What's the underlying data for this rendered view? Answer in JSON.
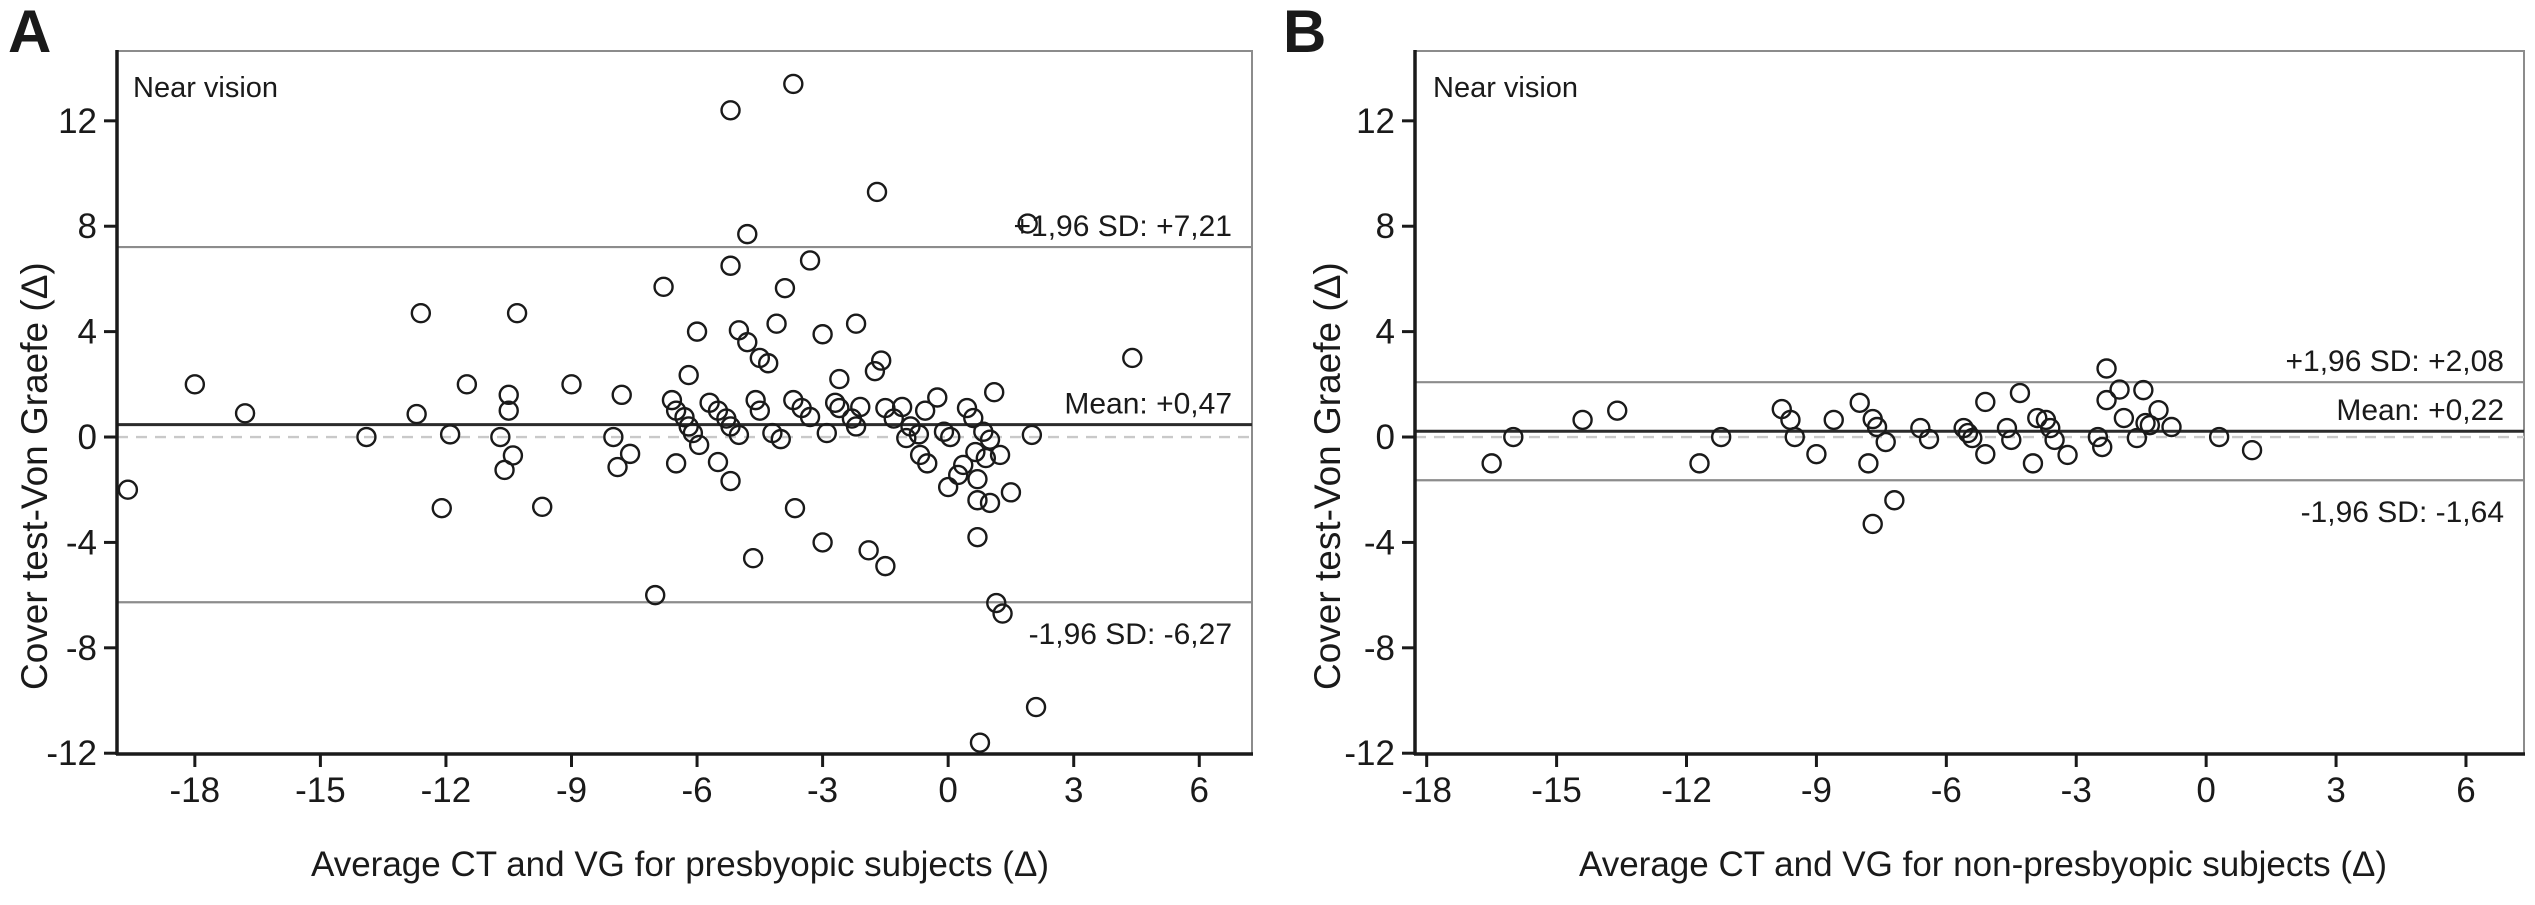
{
  "page": {
    "background": "#ffffff"
  },
  "colors": {
    "marker": "#1a1a1a",
    "box_border": "#8c8c8c",
    "axis_dark": "#1a1a1a",
    "sd_line": "#8c8c8c",
    "mean_line": "#2b2b2b",
    "zero_dashed": "#c9c9c9",
    "text": "#1a1a1a"
  },
  "panels": [
    {
      "letter": "A",
      "annotation": "Near vision",
      "y_axis_title": "Cover test-Von Graefe (Δ)",
      "x_axis_title": "Average CT and VG for presbyopic subjects (Δ)"
    },
    {
      "letter": "B",
      "annotation": "Near vision",
      "y_axis_title": "Cover test-Von Graefe (Δ)",
      "x_axis_title": "Average CT and VG for non-presbyopic subjects (Δ)"
    }
  ],
  "chart_data": [
    {
      "type": "scatter",
      "panel": "A",
      "title": "Near vision",
      "xlabel": "Average CT and VG for presbyopic subjects (Δ)",
      "ylabel": "Cover test-Von Graefe (Δ)",
      "xlim": [
        -19.86,
        7.26
      ],
      "ylim": [
        -12.03,
        14.65
      ],
      "xticks": [
        -18,
        -15,
        -12,
        -9,
        -6,
        -3,
        0,
        3,
        6
      ],
      "yticks": [
        -12,
        -8,
        -4,
        0,
        4,
        8,
        12
      ],
      "grid": false,
      "legend": "none",
      "marker": "open-circle",
      "reference_lines": [
        {
          "value": 7.21,
          "label": "+1,96 SD: +7,21",
          "style": "solid-gray",
          "label_position": "above-right"
        },
        {
          "value": 0.47,
          "label": "Mean: +0,47",
          "style": "solid-dark",
          "label_position": "above-right"
        },
        {
          "value": 0.0,
          "label": "",
          "style": "dashed-light",
          "label_position": "none"
        },
        {
          "value": -6.27,
          "label": "-1,96 SD: -6,27",
          "style": "solid-gray",
          "label_position": "below-right"
        }
      ],
      "points": [
        [
          -19.6,
          -2.0
        ],
        [
          -18.0,
          2.0
        ],
        [
          -16.8,
          0.9
        ],
        [
          -13.9,
          0.0
        ],
        [
          -12.7,
          0.87
        ],
        [
          -12.6,
          4.7
        ],
        [
          -12.1,
          -2.7
        ],
        [
          -11.9,
          0.1
        ],
        [
          -11.5,
          2.0
        ],
        [
          -10.7,
          0.0
        ],
        [
          -10.6,
          -1.25
        ],
        [
          -10.5,
          1.6
        ],
        [
          -10.5,
          1.0
        ],
        [
          -10.4,
          -0.7
        ],
        [
          -10.3,
          4.7
        ],
        [
          -9.7,
          -2.65
        ],
        [
          -9.0,
          2.0
        ],
        [
          -8.0,
          0.0
        ],
        [
          -7.9,
          -1.14
        ],
        [
          -7.8,
          1.6
        ],
        [
          -7.6,
          -0.64
        ],
        [
          -7.0,
          -6.0
        ],
        [
          -6.8,
          5.7
        ],
        [
          -6.6,
          1.4
        ],
        [
          -6.5,
          1.0
        ],
        [
          -6.5,
          -1.0
        ],
        [
          -6.3,
          0.75
        ],
        [
          -6.2,
          2.35
        ],
        [
          -6.2,
          0.4
        ],
        [
          -6.1,
          0.15
        ],
        [
          -6.0,
          4.0
        ],
        [
          -5.95,
          -0.3
        ],
        [
          -5.7,
          1.3
        ],
        [
          -5.5,
          1.0
        ],
        [
          -5.5,
          -0.95
        ],
        [
          -5.3,
          0.7
        ],
        [
          -5.2,
          12.4
        ],
        [
          -5.2,
          6.5
        ],
        [
          -5.2,
          0.4
        ],
        [
          -5.2,
          -1.67
        ],
        [
          -5.0,
          4.05
        ],
        [
          -5.0,
          0.08
        ],
        [
          -4.8,
          7.7
        ],
        [
          -4.8,
          3.6
        ],
        [
          -4.66,
          -4.6
        ],
        [
          -4.6,
          1.4
        ],
        [
          -4.5,
          3.0
        ],
        [
          -4.5,
          1.0
        ],
        [
          -4.3,
          2.8
        ],
        [
          -4.2,
          0.15
        ],
        [
          -4.1,
          4.3
        ],
        [
          -4.0,
          -0.08
        ],
        [
          -3.9,
          5.65
        ],
        [
          -3.7,
          13.4
        ],
        [
          -3.7,
          1.4
        ],
        [
          -3.66,
          -2.7
        ],
        [
          -3.5,
          1.1
        ],
        [
          -3.3,
          6.7
        ],
        [
          -3.3,
          0.76
        ],
        [
          -3.0,
          3.9
        ],
        [
          -3.0,
          -4.0
        ],
        [
          -2.9,
          0.15
        ],
        [
          -2.7,
          1.3
        ],
        [
          -2.6,
          2.2
        ],
        [
          -2.6,
          1.1
        ],
        [
          -2.3,
          0.7
        ],
        [
          -2.2,
          4.3
        ],
        [
          -2.2,
          0.4
        ],
        [
          -2.1,
          1.14
        ],
        [
          -1.9,
          -4.3
        ],
        [
          -1.75,
          2.5
        ],
        [
          -1.7,
          9.3
        ],
        [
          -1.6,
          2.9
        ],
        [
          -1.5,
          1.1
        ],
        [
          -1.5,
          -4.9
        ],
        [
          -1.3,
          0.7
        ],
        [
          -1.1,
          1.14
        ],
        [
          -1.0,
          -0.04
        ],
        [
          -0.9,
          0.4
        ],
        [
          -0.7,
          0.1
        ],
        [
          -0.67,
          -0.68
        ],
        [
          -0.55,
          1.0
        ],
        [
          -0.5,
          -1.0
        ],
        [
          -0.26,
          1.5
        ],
        [
          -0.1,
          0.2
        ],
        [
          0.05,
          0.0
        ],
        [
          0.0,
          -1.9
        ],
        [
          0.24,
          -1.44
        ],
        [
          0.36,
          -1.06
        ],
        [
          0.45,
          1.1
        ],
        [
          0.6,
          0.72
        ],
        [
          0.65,
          -0.57
        ],
        [
          0.7,
          -1.6
        ],
        [
          0.7,
          -2.4
        ],
        [
          0.7,
          -3.8
        ],
        [
          0.76,
          -11.6
        ],
        [
          0.84,
          0.2
        ],
        [
          0.9,
          -0.8
        ],
        [
          1.0,
          -0.1
        ],
        [
          1.0,
          -2.5
        ],
        [
          1.1,
          1.7
        ],
        [
          1.15,
          -6.3
        ],
        [
          1.24,
          -0.68
        ],
        [
          1.3,
          -6.7
        ],
        [
          1.5,
          -2.1
        ],
        [
          1.9,
          8.1
        ],
        [
          2.0,
          0.08
        ],
        [
          2.1,
          -10.25
        ],
        [
          4.4,
          3.0
        ]
      ]
    },
    {
      "type": "scatter",
      "panel": "B",
      "title": "Near vision",
      "xlabel": "Average CT and VG for non-presbyopic subjects (Δ)",
      "ylabel": "Cover test-Von Graefe (Δ)",
      "xlim": [
        -18.27,
        7.34
      ],
      "ylim": [
        -12.03,
        14.65
      ],
      "xticks": [
        -18,
        -15,
        -12,
        -9,
        -6,
        -3,
        0,
        3,
        6
      ],
      "yticks": [
        -12,
        -8,
        -4,
        0,
        4,
        8,
        12
      ],
      "grid": false,
      "legend": "none",
      "marker": "open-circle",
      "reference_lines": [
        {
          "value": 2.08,
          "label": "+1,96 SD: +2,08",
          "style": "solid-gray",
          "label_position": "above-right"
        },
        {
          "value": 0.22,
          "label": "Mean: +0,22",
          "style": "solid-dark",
          "label_position": "above-right"
        },
        {
          "value": 0.0,
          "label": "",
          "style": "dashed-light",
          "label_position": "none"
        },
        {
          "value": -1.64,
          "label": "-1,96 SD: -1,64",
          "style": "solid-gray",
          "label_position": "below-right"
        }
      ],
      "points": [
        [
          -16.5,
          -1.0
        ],
        [
          -16.0,
          0.0
        ],
        [
          -14.4,
          0.65
        ],
        [
          -13.6,
          1.0
        ],
        [
          -11.7,
          -1.0
        ],
        [
          -11.2,
          0.0
        ],
        [
          -9.8,
          1.06
        ],
        [
          -9.6,
          0.65
        ],
        [
          -9.5,
          0.0
        ],
        [
          -9.0,
          -0.65
        ],
        [
          -8.6,
          0.65
        ],
        [
          -8.0,
          1.3
        ],
        [
          -7.8,
          -1.0
        ],
        [
          -7.7,
          0.68
        ],
        [
          -7.7,
          -3.3
        ],
        [
          -7.6,
          0.38
        ],
        [
          -7.4,
          -0.19
        ],
        [
          -7.2,
          -2.4
        ],
        [
          -6.6,
          0.34
        ],
        [
          -6.4,
          -0.08
        ],
        [
          -5.6,
          0.34
        ],
        [
          -5.5,
          0.15
        ],
        [
          -5.4,
          -0.04
        ],
        [
          -5.1,
          1.33
        ],
        [
          -5.1,
          -0.65
        ],
        [
          -4.6,
          0.34
        ],
        [
          -4.5,
          -0.11
        ],
        [
          -4.3,
          1.67
        ],
        [
          -4.0,
          -1.0
        ],
        [
          -3.9,
          0.72
        ],
        [
          -3.7,
          0.65
        ],
        [
          -3.6,
          0.34
        ],
        [
          -3.5,
          -0.11
        ],
        [
          -3.2,
          -0.68
        ],
        [
          -2.5,
          0.0
        ],
        [
          -2.4,
          -0.38
        ],
        [
          -2.3,
          2.6
        ],
        [
          -2.3,
          1.4
        ],
        [
          -2.0,
          1.8
        ],
        [
          -1.9,
          0.72
        ],
        [
          -1.6,
          -0.04
        ],
        [
          -1.45,
          1.78
        ],
        [
          -1.4,
          0.53
        ],
        [
          -1.3,
          0.45
        ],
        [
          -1.1,
          1.02
        ],
        [
          -0.8,
          0.38
        ],
        [
          0.3,
          0.0
        ],
        [
          1.06,
          -0.5
        ]
      ]
    }
  ]
}
